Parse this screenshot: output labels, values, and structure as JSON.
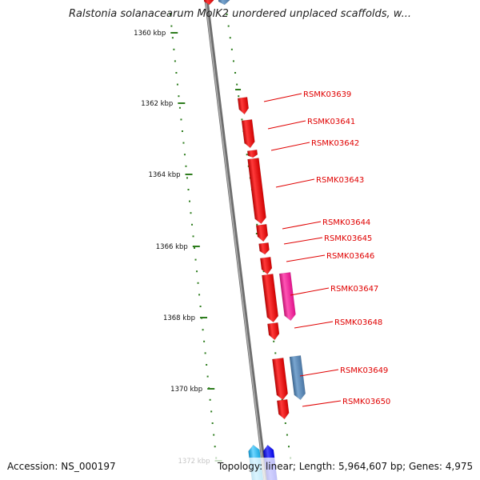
{
  "title": "Ralstonia solanacearum MolK2 unordered unplaced scaffolds, w...",
  "accession": "Accession: NS_000197",
  "topology": "Topology: linear; Length: 5,964,607 bp; Genes: 4,975",
  "colors": {
    "tick": "#2e7d1e",
    "backbone": "#8a8a8a",
    "gene_red": "#ff0000",
    "gene_magenta": "#ff1493",
    "gene_steel": "#4f7fb0",
    "gene_cyan": "#1fb7f0",
    "gene_blue": "#0000ff",
    "label": "#e00000"
  },
  "ruler_labels": [
    "1360 kbp",
    "1362 kbp",
    "1364 kbp",
    "1366 kbp",
    "1368 kbp",
    "1370 kbp",
    "1372 kbp"
  ],
  "gene_labels": [
    "RSMK03639",
    "RSMK03641",
    "RSMK03642",
    "RSMK03643",
    "RSMK03644",
    "RSMK03645",
    "RSMK03646",
    "RSMK03647",
    "RSMK03648",
    "RSMK03649",
    "RSMK03650"
  ]
}
